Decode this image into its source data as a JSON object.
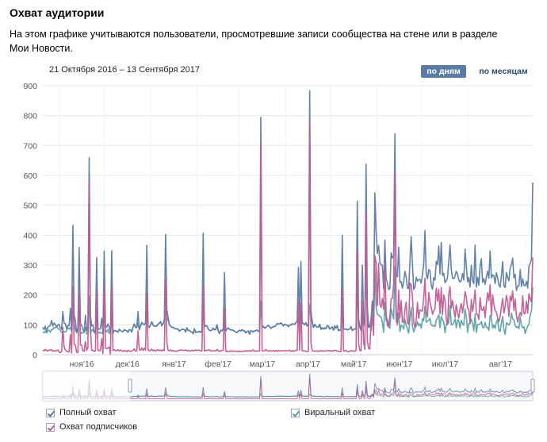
{
  "page": {
    "title": "Охват аудитории",
    "description": "На этом графике учитываются пользователи, просмотревшие записи сообщества на стене или в разделе Мои Новости.",
    "date_range": "21 Октября 2016 – 13 Сентября 2017",
    "toggle": {
      "by_days": "по дням",
      "by_months": "по месяцам",
      "active": "по дням"
    },
    "legend": [
      {
        "label": "Полный охват",
        "checked": true
      },
      {
        "label": "Виральный охват",
        "checked": true
      },
      {
        "label": "Охват подписчиков",
        "checked": true
      }
    ]
  },
  "colors": {
    "total": "#5a7ba3",
    "viral": "#59a1a6",
    "subscribers": "#c25a93"
  },
  "chart_data": {
    "type": "line",
    "x_start": "2016-10-21",
    "x_end": "2017-09-13",
    "x_step": "1 day",
    "ylim": [
      0,
      900
    ],
    "yticks": [
      0,
      100,
      200,
      300,
      400,
      500,
      600,
      700,
      800,
      900
    ],
    "xtick_labels": [
      "ноя'16",
      "дек'16",
      "янв'17",
      "фев'17",
      "мар'17",
      "апр'17",
      "май'17",
      "июн'17",
      "июл'17",
      "авг'17"
    ],
    "xtick_dates": [
      "2016-11-01",
      "2016-12-01",
      "2017-01-01",
      "2017-02-01",
      "2017-03-01",
      "2017-04-01",
      "2017-05-01",
      "2017-06-01",
      "2017-07-01",
      "2017-08-01"
    ],
    "grid": true,
    "legend_position": "bottom",
    "series": [
      {
        "name": "Полный охват",
        "values": [
          92,
          84,
          95,
          78,
          92,
          95,
          99,
          115,
          96,
          106,
          101,
          93,
          99,
          102,
          89,
          85,
          144,
          105,
          104,
          86,
          98,
          97,
          155,
          81,
          433,
          132,
          115,
          74,
          89,
          359,
          104,
          99,
          84,
          75,
          132,
          81,
          94,
          659,
          129,
          96,
          100,
          75,
          83,
          325,
          88,
          85,
          88,
          122,
          71,
          347,
          97,
          92,
          103,
          93,
          73,
          348,
          71,
          81,
          80,
          79,
          75,
          85,
          81,
          78,
          77,
          84,
          81,
          80,
          75,
          84,
          83,
          76,
          92,
          103,
          92,
          91,
          144,
          84,
          95,
          108,
          102,
          101,
          107,
          366,
          95,
          91,
          100,
          110,
          99,
          95,
          95,
          96,
          103,
          105,
          111,
          97,
          104,
          117,
          402,
          151,
          124,
          100,
          96,
          91,
          92,
          89,
          86,
          87,
          85,
          79,
          82,
          85,
          85,
          84,
          76,
          90,
          81,
          82,
          77,
          76,
          70,
          87,
          74,
          76,
          76,
          78,
          75,
          80,
          407,
          94,
          97,
          96,
          86,
          82,
          80,
          83,
          89,
          83,
          85,
          100,
          79,
          71,
          82,
          80,
          86,
          275,
          79,
          86,
          90,
          85,
          83,
          83,
          81,
          79,
          76,
          74,
          79,
          82,
          79,
          84,
          80,
          80,
          73,
          78,
          79,
          69,
          80,
          79,
          76,
          80,
          80,
          83,
          78,
          79,
          794,
          91,
          95,
          89,
          91,
          95,
          98,
          94,
          88,
          92,
          94,
          94,
          98,
          104,
          103,
          103,
          107,
          102,
          96,
          102,
          100,
          99,
          94,
          100,
          99,
          104,
          102,
          102,
          107,
          112,
          292,
          103,
          312,
          105,
          105,
          100,
          107,
          96,
          101,
          883,
          148,
          111,
          91,
          101,
          95,
          92,
          93,
          102,
          85,
          90,
          86,
          90,
          87,
          97,
          95,
          86,
          90,
          93,
          82,
          96,
          89,
          97,
          80,
          83,
          82,
          400,
          86,
          85,
          86,
          83,
          85,
          86,
          94,
          81,
          84,
          87,
          85,
          513,
          121,
          94,
          81,
          300,
          132,
          97,
          637,
          162,
          91,
          98,
          121,
          180,
          146,
          541,
          413,
          339,
          366,
          309,
          300,
          300,
          221,
          384,
          256,
          239,
          218,
          221,
          341,
          324,
          330,
          739,
          263,
          261,
          360,
          242,
          245,
          223,
          243,
          279,
          260,
          223,
          221,
          311,
          395,
          303,
          218,
          226,
          259,
          246,
          251,
          252,
          239,
          269,
          301,
          415,
          270,
          254,
          285,
          280,
          232,
          219,
          258,
          250,
          312,
          302,
          364,
          270,
          376,
          265,
          273,
          241,
          247,
          258,
          312,
          367,
          286,
          256,
          254,
          263,
          279,
          269,
          250,
          243,
          249,
          272,
          250,
          353,
          297,
          244,
          258,
          226,
          299,
          247,
          238,
          367,
          226,
          259,
          233,
          297,
          321,
          242,
          254,
          235,
          260,
          279,
          256,
          347,
          257,
          267,
          264,
          238,
          274,
          258,
          233,
          226,
          264,
          311,
          230,
          225,
          275,
          258,
          247,
          290,
          301,
          323,
          258,
          269,
          215,
          230,
          230,
          285,
          228,
          254,
          232,
          231,
          246,
          223,
          297,
          305,
          319,
          576
        ]
      },
      {
        "name": "Виральный охват",
        "values": [
          76,
          73,
          79,
          73,
          81,
          82,
          75,
          84,
          84,
          91,
          90,
          95,
          88,
          85,
          82,
          74,
          76,
          77,
          76,
          81,
          91,
          86,
          91,
          78,
          208,
          101,
          82,
          74,
          89,
          165,
          75,
          71,
          74,
          75,
          91,
          69,
          70,
          196,
          71,
          84,
          82,
          75,
          70,
          125,
          76,
          72,
          76,
          71,
          71,
          149,
          82,
          76,
          85,
          71,
          73,
          130,
          71,
          81,
          80,
          79,
          75,
          85,
          81,
          78,
          77,
          84,
          81,
          80,
          75,
          84,
          83,
          76,
          92,
          103,
          92,
          91,
          106,
          84,
          95,
          108,
          102,
          101,
          107,
          165,
          95,
          91,
          100,
          110,
          99,
          95,
          95,
          96,
          103,
          105,
          111,
          97,
          104,
          117,
          147,
          112,
          124,
          100,
          96,
          91,
          92,
          89,
          86,
          87,
          85,
          79,
          82,
          85,
          85,
          84,
          76,
          90,
          81,
          82,
          77,
          76,
          70,
          87,
          74,
          76,
          76,
          78,
          75,
          80,
          179,
          94,
          97,
          96,
          86,
          82,
          80,
          83,
          89,
          83,
          85,
          100,
          79,
          71,
          82,
          80,
          86,
          120,
          79,
          86,
          90,
          85,
          83,
          83,
          81,
          79,
          76,
          74,
          79,
          82,
          79,
          84,
          80,
          80,
          73,
          78,
          79,
          69,
          80,
          79,
          76,
          80,
          80,
          83,
          78,
          79,
          180,
          91,
          95,
          89,
          91,
          95,
          98,
          94,
          88,
          92,
          94,
          94,
          98,
          104,
          103,
          103,
          107,
          102,
          96,
          102,
          100,
          99,
          94,
          100,
          99,
          104,
          102,
          102,
          107,
          112,
          117,
          103,
          148,
          105,
          105,
          100,
          107,
          96,
          101,
          167,
          127,
          111,
          91,
          101,
          95,
          92,
          93,
          102,
          85,
          90,
          86,
          90,
          87,
          97,
          95,
          86,
          90,
          93,
          82,
          96,
          89,
          97,
          80,
          83,
          82,
          179,
          86,
          85,
          86,
          83,
          85,
          86,
          94,
          81,
          84,
          87,
          85,
          235,
          104,
          94,
          81,
          142,
          108,
          97,
          291,
          123,
          91,
          98,
          80,
          155,
          102,
          289,
          159,
          135,
          132,
          128,
          127,
          108,
          75,
          175,
          114,
          119,
          93,
          89,
          154,
          136,
          120,
          295,
          111,
          105,
          139,
          77,
          99,
          95,
          86,
          118,
          98,
          86,
          72,
          118,
          159,
          97,
          76,
          89,
          96,
          110,
          97,
          104,
          89,
          120,
          114,
          162,
          109,
          112,
          115,
          122,
          100,
          97,
          97,
          94,
          116,
          123,
          134,
          90,
          129,
          116,
          109,
          73,
          102,
          113,
          106,
          165,
          100,
          100,
          108,
          120,
          90,
          117,
          114,
          89,
          115,
          104,
          99,
          154,
          129,
          75,
          104,
          104,
          119,
          104,
          80,
          135,
          74,
          101,
          102,
          102,
          111,
          91,
          90,
          108,
          92,
          92,
          81,
          131,
          122,
          89,
          99,
          88,
          109,
          118,
          82,
          78,
          106,
          128,
          84,
          68,
          107,
          103,
          99,
          107,
          139,
          119,
          117,
          98,
          91,
          94,
          87,
          127,
          98,
          90,
          94,
          71,
          86,
          95,
          103,
          134,
          145,
          226
        ]
      },
      {
        "name": "Охват подписчиков",
        "values": [
          16,
          13,
          18,
          14,
          12,
          16,
          15,
          17,
          11,
          13,
          12,
          14,
          16,
          9,
          7,
          11,
          92,
          25,
          16,
          12,
          10,
          9,
          68,
          6,
          230,
          35,
          32,
          8,
          7,
          206,
          32,
          32,
          13,
          12,
          44,
          14,
          23,
          576,
          90,
          14,
          15,
          11,
          13,
          212,
          14,
          15,
          13,
          54,
          4,
          235,
          22,
          20,
          22,
          26,
          2,
          228,
          14,
          17,
          14,
          13,
          17,
          12,
          16,
          13,
          11,
          14,
          13,
          10,
          15,
          12,
          11,
          13,
          14,
          20,
          12,
          13,
          80,
          17,
          15,
          23,
          14,
          22,
          15,
          206,
          18,
          13,
          14,
          19,
          13,
          16,
          12,
          15,
          17,
          13,
          16,
          12,
          17,
          14,
          250,
          43,
          15,
          13,
          16,
          12,
          14,
          13,
          11,
          12,
          14,
          14,
          16,
          15,
          15,
          14,
          16,
          13,
          15,
          12,
          12,
          15,
          13,
          14,
          16,
          14,
          15,
          15,
          13,
          12,
          230,
          12,
          15,
          14,
          16,
          16,
          12,
          13,
          14,
          13,
          12,
          18,
          13,
          11,
          14,
          14,
          15,
          158,
          12,
          10,
          12,
          11,
          14,
          11,
          13,
          12,
          11,
          12,
          10,
          13,
          11,
          11,
          12,
          12,
          14,
          12,
          12,
          14,
          11,
          14,
          16,
          11,
          13,
          12,
          13,
          12,
          701,
          14,
          12,
          13,
          17,
          14,
          12,
          14,
          12,
          13,
          14,
          11,
          14,
          11,
          15,
          12,
          13,
          14,
          13,
          14,
          13,
          13,
          14,
          15,
          11,
          14,
          11,
          13,
          15,
          14,
          182,
          15,
          171,
          13,
          13,
          12,
          12,
          10,
          12,
          776,
          40,
          14,
          12,
          12,
          12,
          12,
          11,
          14,
          12,
          14,
          12,
          12,
          13,
          14,
          14,
          13,
          12,
          14,
          12,
          15,
          14,
          12,
          12,
          10,
          11,
          223,
          13,
          12,
          14,
          11,
          10,
          12,
          14,
          12,
          13,
          11,
          15,
          353,
          38,
          14,
          13,
          180,
          43,
          18,
          477,
          46,
          21,
          19,
          114,
          126,
          65,
          331,
          308,
          164,
          306,
          170,
          158,
          188,
          153,
          297,
          139,
          97,
          95,
          127,
          187,
          189,
          237,
          614,
          152,
          99,
          216,
          124,
          181,
          108,
          110,
          150,
          176,
          107,
          102,
          240,
          235,
          195,
          110,
          91,
          116,
          175,
          121,
          150,
          147,
          146,
          188,
          256,
          145,
          126,
          208,
          176,
          158,
          135,
          147,
          154,
          223,
          179,
          219,
          137,
          225,
          134,
          200,
          180,
          117,
          100,
          203,
          227,
          156,
          181,
          149,
          125,
          167,
          139,
          122,
          155,
          171,
          140,
          170,
          211,
          192,
          156,
          152,
          104,
          185,
          145,
          173,
          217,
          136,
          134,
          118,
          191,
          151,
          148,
          161,
          124,
          170,
          207,
          181,
          234,
          129,
          200,
          169,
          147,
          143,
          123,
          111,
          128,
          161,
          188,
          139,
          161,
          198,
          180,
          128,
          196,
          180,
          213,
          148,
          186,
          131,
          109,
          129,
          141,
          130,
          197,
          138,
          138,
          179,
          139,
          204,
          186,
          176,
          325
        ]
      }
    ]
  }
}
